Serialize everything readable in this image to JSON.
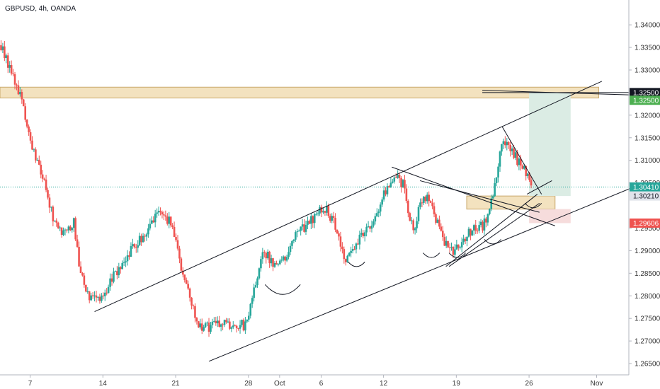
{
  "header": {
    "symbol_title": "GBPUSD, 4h, OANDA"
  },
  "chart_data": {
    "type": "candlestick",
    "symbol": "GBPUSD",
    "interval": "4h",
    "source": "OANDA",
    "ylim": [
      1.2625,
      1.3455
    ],
    "y_ticks": [
      1.34,
      1.335,
      1.33,
      1.32,
      1.315,
      1.31,
      1.305,
      1.295,
      1.29,
      1.285,
      1.28,
      1.275,
      1.27,
      1.265
    ],
    "y_tick_labels": [
      "1.34000",
      "1.33500",
      "1.33000",
      "1.32000",
      "1.31500",
      "1.31000",
      "1.30500",
      "1.29500",
      "1.29000",
      "1.28500",
      "1.28000",
      "1.27500",
      "1.27000",
      "1.26500"
    ],
    "x_ticks": [
      {
        "label": "7",
        "day": 7
      },
      {
        "label": "14",
        "day": 14
      },
      {
        "label": "21",
        "day": 21
      },
      {
        "label": "28",
        "day": 28
      },
      {
        "label": "Oct",
        "day": 31
      },
      {
        "label": "6",
        "day": 35
      },
      {
        "label": "12",
        "day": 41
      },
      {
        "label": "19",
        "day": 48
      },
      {
        "label": "26",
        "day": 55
      },
      {
        "label": "Nov",
        "day": 61.5
      }
    ],
    "x_range_days": [
      4.1,
      64.6
    ],
    "candles_per_day": 6,
    "up_color": "#26a69a",
    "down_color": "#ef5350",
    "price_path": [
      [
        4.2,
        1.3355
      ],
      [
        5.2,
        1.3295
      ],
      [
        6.2,
        1.3235
      ],
      [
        7.2,
        1.3125
      ],
      [
        8.2,
        1.3065
      ],
      [
        9.2,
        1.2975
      ],
      [
        10.2,
        1.2935
      ],
      [
        11.2,
        1.2965
      ],
      [
        11.8,
        1.2855
      ],
      [
        12.6,
        1.2795
      ],
      [
        13.6,
        1.2785
      ],
      [
        14.8,
        1.2835
      ],
      [
        15.8,
        1.2865
      ],
      [
        16.8,
        1.2905
      ],
      [
        18.2,
        1.2935
      ],
      [
        19.2,
        1.2985
      ],
      [
        20.6,
        1.2965
      ],
      [
        21.4,
        1.2875
      ],
      [
        22.4,
        1.2795
      ],
      [
        23.4,
        1.2725
      ],
      [
        24.6,
        1.2735
      ],
      [
        25.6,
        1.2745
      ],
      [
        26.6,
        1.2735
      ],
      [
        27.6,
        1.2735
      ],
      [
        28.4,
        1.2795
      ],
      [
        29.4,
        1.2895
      ],
      [
        30.4,
        1.2875
      ],
      [
        31.6,
        1.2885
      ],
      [
        32.6,
        1.2945
      ],
      [
        33.6,
        1.2955
      ],
      [
        34.6,
        1.2985
      ],
      [
        35.4,
        1.2995
      ],
      [
        36.6,
        1.2945
      ],
      [
        37.2,
        1.2875
      ],
      [
        38.2,
        1.2905
      ],
      [
        39.2,
        1.2945
      ],
      [
        40.2,
        1.2975
      ],
      [
        41.2,
        1.3035
      ],
      [
        42.2,
        1.3065
      ],
      [
        42.9,
        1.3045
      ],
      [
        43.4,
        1.2975
      ],
      [
        43.9,
        1.2945
      ],
      [
        44.6,
        1.3005
      ],
      [
        45.4,
        1.3015
      ],
      [
        46.1,
        1.2965
      ],
      [
        46.8,
        1.2925
      ],
      [
        47.6,
        1.2895
      ],
      [
        48.6,
        1.2925
      ],
      [
        49.6,
        1.2945
      ],
      [
        50.6,
        1.2955
      ],
      [
        51.6,
        1.3025
      ],
      [
        52.4,
        1.3145
      ],
      [
        53.2,
        1.3125
      ],
      [
        54.0,
        1.3095
      ],
      [
        54.6,
        1.3075
      ],
      [
        55.2,
        1.3045
      ]
    ],
    "price_level_lines": [
      {
        "price": 1.325,
        "color": "#131722"
      },
      {
        "price": 1.3041,
        "color": "#26a69a",
        "dotted": true
      }
    ],
    "price_badges": [
      {
        "label": "1.32500",
        "price": 1.325,
        "bg": "#131722"
      },
      {
        "label": "1.32500",
        "price": 1.3233,
        "bg": "#4caf50"
      },
      {
        "label": "1.30410",
        "price": 1.3041,
        "bg": "#26a69a"
      },
      {
        "label": "1.30210",
        "price": 1.3021,
        "bg": "#e0e3eb",
        "dark": true
      },
      {
        "label": "1.29606",
        "price": 1.2961,
        "bg": "#ef5350"
      }
    ],
    "zones": [
      {
        "kind": "resistance",
        "day": [
          4.1,
          61.7
        ],
        "price": [
          1.3238,
          1.3262
        ],
        "fill": "#f3e2bf",
        "stroke": "#c9a86a"
      },
      {
        "kind": "entry",
        "day": [
          49.0,
          57.5
        ],
        "price": [
          1.2992,
          1.3021
        ],
        "fill": "#f3e2bf",
        "stroke": "#c9a86a"
      },
      {
        "kind": "take-profit",
        "day": [
          55.0,
          59.0
        ],
        "price": [
          1.3021,
          1.325
        ],
        "fill": "#dbece4"
      },
      {
        "kind": "stop-loss",
        "day": [
          55.0,
          59.0
        ],
        "price": [
          1.2961,
          1.2992
        ],
        "fill": "#f6dcdc"
      }
    ],
    "trend_lines": [
      {
        "name": "channel-upper",
        "from": [
          13.2,
          1.2765
        ],
        "to": [
          62.0,
          1.3275
        ]
      },
      {
        "name": "channel-lower",
        "from": [
          24.2,
          1.2655
        ],
        "to": [
          65.5,
          1.3045
        ]
      },
      {
        "name": "resistance-ray",
        "from": [
          50.5,
          1.3255
        ],
        "to": [
          64.6,
          1.3245
        ]
      },
      {
        "name": "descending-left",
        "from": [
          41.8,
          1.3085
        ],
        "to": [
          57.5,
          1.2955
        ]
      },
      {
        "name": "descending-mid",
        "from": [
          44.5,
          1.3055
        ],
        "to": [
          56.0,
          1.2985
        ]
      },
      {
        "name": "flag-upper",
        "from": [
          52.4,
          1.3175
        ],
        "to": [
          56.2,
          1.3025
        ]
      },
      {
        "name": "flag-lower",
        "from": [
          54.8,
          1.3025
        ],
        "to": [
          57.2,
          1.3055
        ]
      },
      {
        "name": "pennant-a",
        "from": [
          47.0,
          1.2865
        ],
        "to": [
          55.8,
          1.3025
        ]
      },
      {
        "name": "pennant-b",
        "from": [
          47.3,
          1.2865
        ],
        "to": [
          56.0,
          1.3005
        ]
      }
    ],
    "arcs": [
      {
        "center_day": 31.3,
        "price": 1.2825,
        "half_width_days": 1.7
      },
      {
        "center_day": 38.4,
        "price": 1.2875,
        "half_width_days": 0.8
      },
      {
        "center_day": 45.6,
        "price": 1.2895,
        "half_width_days": 0.8
      },
      {
        "center_day": 48.1,
        "price": 1.2895,
        "half_width_days": 0.8
      },
      {
        "center_day": 51.5,
        "price": 1.2925,
        "half_width_days": 0.8
      },
      {
        "center_day": 55.4,
        "price": 1.3005,
        "half_width_days": 0.8
      }
    ]
  }
}
